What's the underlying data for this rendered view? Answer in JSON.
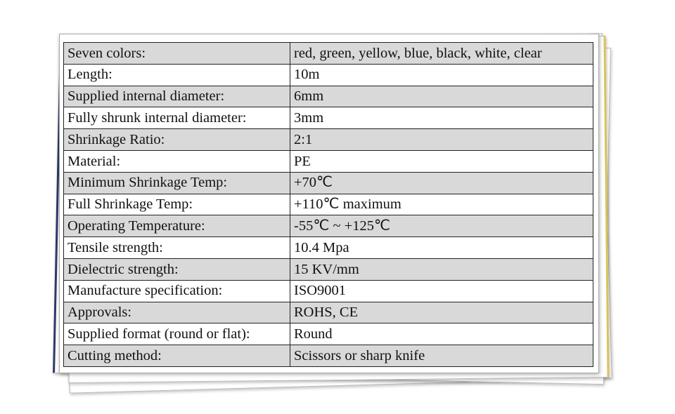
{
  "table": {
    "rows": [
      [
        "Seven colors:",
        "red, green, yellow, blue, black, white, clear"
      ],
      [
        "Length:",
        "10m"
      ],
      [
        "Supplied internal diameter:",
        "6mm"
      ],
      [
        "Fully shrunk internal diameter:",
        "3mm"
      ],
      [
        "Shrinkage Ratio:",
        "2:1"
      ],
      [
        "Material:",
        "PE"
      ],
      [
        "Minimum Shrinkage Temp:",
        "+70℃"
      ],
      [
        "Full Shrinkage Temp:",
        "+110℃ maximum"
      ],
      [
        "Operating Temperature:",
        "-55℃ ~ +125℃"
      ],
      [
        "Tensile strength:",
        "10.4 Mpa"
      ],
      [
        "Dielectric strength:",
        "15 KV/mm"
      ],
      [
        "Manufacture specification:",
        "ISO9001"
      ],
      [
        "Approvals:",
        "ROHS, CE"
      ],
      [
        "Supplied format (round or flat):",
        "Round"
      ],
      [
        "Cutting method:",
        "Scissors or sharp knife"
      ]
    ]
  }
}
